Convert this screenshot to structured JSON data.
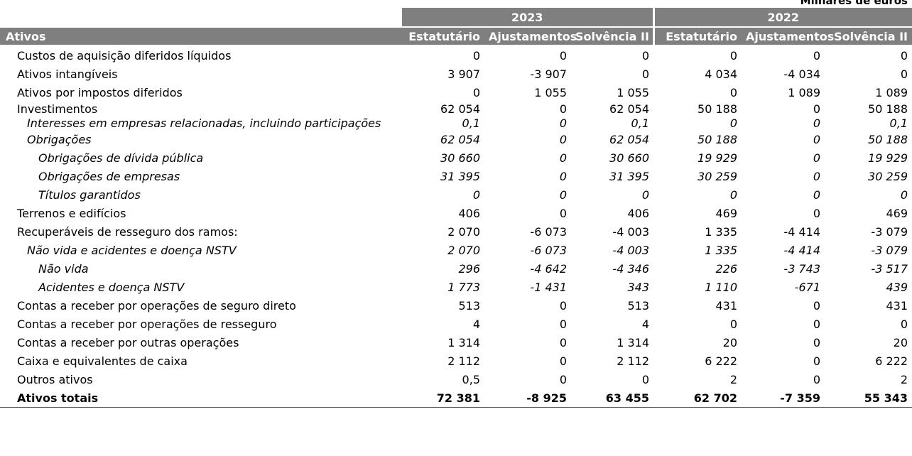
{
  "unit_label": "Milhares de euros",
  "header": {
    "years": [
      "2023",
      "2022"
    ],
    "row_label": "Ativos",
    "columns": [
      "Estatutário",
      "Ajustamentos",
      "Solvência II",
      "Estatutário",
      "Ajustamentos",
      "Solvência II"
    ]
  },
  "rows": [
    {
      "label": "Custos de aquisição diferidos líquidos",
      "values": [
        "0",
        "0",
        "0",
        "0",
        "0",
        "0"
      ]
    },
    {
      "label": "Ativos intangíveis",
      "values": [
        "3 907",
        "-3 907",
        "0",
        "4 034",
        "-4 034",
        "0"
      ]
    },
    {
      "label": "Ativos por impostos diferidos",
      "values": [
        "0",
        "1 055",
        "1 055",
        "0",
        "1 089",
        "1 089"
      ]
    },
    {
      "label": "Investimentos",
      "values": [
        "62 054",
        "0",
        "62 054",
        "50 188",
        "0",
        "50 188"
      ]
    },
    {
      "label": "Interesses em empresas relacionadas, incluindo participações",
      "values": [
        "0,1",
        "0",
        "0,1",
        "0",
        "0",
        "0,1"
      ]
    },
    {
      "label": "Obrigações",
      "values": [
        "62 054",
        "0",
        "62 054",
        "50 188",
        "0",
        "50 188"
      ]
    },
    {
      "label": "Obrigações de dívida pública",
      "values": [
        "30 660",
        "0",
        "30 660",
        "19 929",
        "0",
        "19 929"
      ]
    },
    {
      "label": "Obrigações de empresas",
      "values": [
        "31 395",
        "0",
        "31 395",
        "30 259",
        "0",
        "30 259"
      ]
    },
    {
      "label": "Títulos garantidos",
      "values": [
        "0",
        "0",
        "0",
        "0",
        "0",
        "0"
      ]
    },
    {
      "label": "Terrenos e edifícios",
      "values": [
        "406",
        "0",
        "406",
        "469",
        "0",
        "469"
      ]
    },
    {
      "label": "Recuperáveis de resseguro dos ramos:",
      "values": [
        "2 070",
        "-6 073",
        "-4 003",
        "1 335",
        "-4 414",
        "-3 079"
      ]
    },
    {
      "label": "Não vida e acidentes e doença NSTV",
      "values": [
        "2 070",
        "-6 073",
        "-4 003",
        "1 335",
        "-4 414",
        "-3 079"
      ]
    },
    {
      "label": "Não vida",
      "values": [
        "296",
        "-4 642",
        "-4 346",
        "226",
        "-3 743",
        "-3 517"
      ]
    },
    {
      "label": "Acidentes e doença NSTV",
      "values": [
        "1 773",
        "-1 431",
        "343",
        "1 110",
        "-671",
        "439"
      ]
    },
    {
      "label": "Contas a receber por operações de seguro direto",
      "values": [
        "513",
        "0",
        "513",
        "431",
        "0",
        "431"
      ]
    },
    {
      "label": "Contas a receber por operações de resseguro",
      "values": [
        "4",
        "0",
        "4",
        "0",
        "0",
        "0"
      ]
    },
    {
      "label": "Contas a receber por outras operações",
      "values": [
        "1 314",
        "0",
        "1 314",
        "20",
        "0",
        "20"
      ]
    },
    {
      "label": "Caixa e equivalentes de caixa",
      "values": [
        "2 112",
        "0",
        "2 112",
        "6 222",
        "0",
        "6 222"
      ]
    },
    {
      "label": "Outros ativos",
      "values": [
        "0,5",
        "0",
        "0",
        "2",
        "0",
        "2"
      ]
    },
    {
      "label": "Ativos totais",
      "values": [
        "72 381",
        "-8 925",
        "63 455",
        "62 702",
        "-7 359",
        "55 343"
      ]
    }
  ]
}
